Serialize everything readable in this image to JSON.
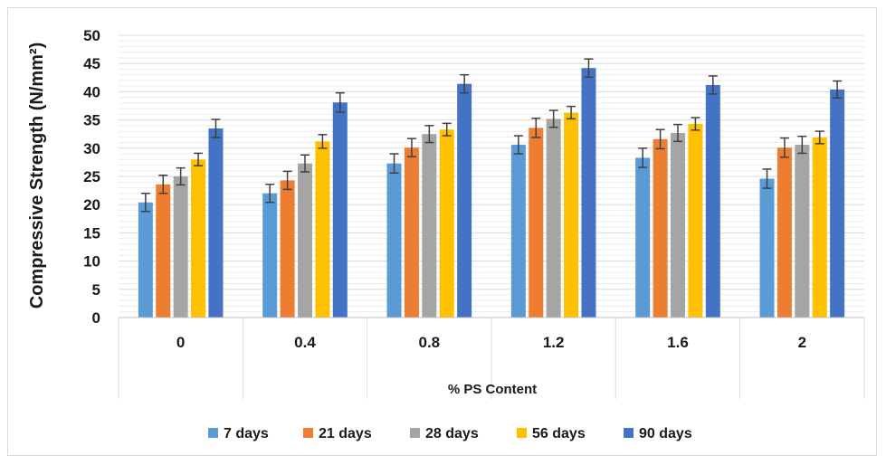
{
  "chart_data": {
    "type": "bar",
    "title": "",
    "xlabel": "% PS Content",
    "ylabel": "Compressive Strength (N/mm²)",
    "ylim": [
      0,
      50
    ],
    "yticks": [
      0,
      5,
      10,
      15,
      20,
      25,
      30,
      35,
      40,
      45,
      50
    ],
    "grid": true,
    "legend_position": "bottom",
    "categories": [
      "0",
      "0.4",
      "0.8",
      "1.2",
      "1.6",
      "2"
    ],
    "series": [
      {
        "name": "7 days",
        "color": "#5b9bd5",
        "values": [
          20.4,
          22.0,
          27.3,
          30.6,
          28.3,
          24.6
        ],
        "errors": [
          1.6,
          1.6,
          1.7,
          1.6,
          1.7,
          1.7
        ]
      },
      {
        "name": "21 days",
        "color": "#ed7d31",
        "values": [
          23.6,
          24.3,
          30.1,
          33.6,
          31.6,
          30.1
        ],
        "errors": [
          1.6,
          1.6,
          1.6,
          1.7,
          1.7,
          1.7
        ]
      },
      {
        "name": "28 days",
        "color": "#a5a5a5",
        "values": [
          25.0,
          27.3,
          32.5,
          35.2,
          32.7,
          30.6
        ],
        "errors": [
          1.5,
          1.5,
          1.5,
          1.5,
          1.5,
          1.5
        ]
      },
      {
        "name": "56 days",
        "color": "#ffc000",
        "values": [
          28.0,
          31.2,
          33.3,
          36.3,
          34.3,
          31.9
        ],
        "errors": [
          1.1,
          1.2,
          1.1,
          1.1,
          1.1,
          1.1
        ]
      },
      {
        "name": "90 days",
        "color": "#4472c4",
        "values": [
          33.5,
          38.1,
          41.4,
          44.2,
          41.2,
          40.4
        ],
        "errors": [
          1.6,
          1.7,
          1.6,
          1.6,
          1.6,
          1.5
        ]
      }
    ]
  }
}
